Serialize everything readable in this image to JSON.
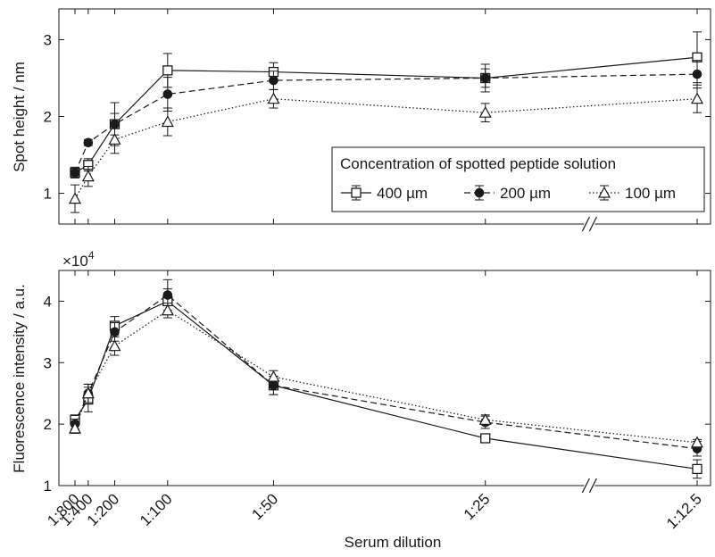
{
  "chart_data": [
    {
      "type": "line",
      "x_categories": [
        "1:800",
        "1:400",
        "1:200",
        "1:100",
        "1:50",
        "1:25",
        "1:12.5"
      ],
      "x_position": [
        0.0,
        0.5,
        1.5,
        3.5,
        7.5,
        15.5,
        23.5
      ],
      "ylabel": "Spot height / nm",
      "xlabel": "",
      "ylim": [
        0.6,
        3.4
      ],
      "yticks": [
        1,
        2,
        3
      ],
      "axis_break": "between 1:25 and 1:12.5",
      "legend": {
        "title": "Concentration of spotted peptide solution",
        "placement": "right"
      },
      "series": [
        {
          "name": "400 µm",
          "marker": "square-open",
          "line": "solid",
          "values": [
            1.27,
            1.37,
            1.9,
            2.6,
            2.58,
            2.5,
            2.77
          ],
          "errors": [
            0.07,
            0.08,
            0.28,
            0.22,
            0.12,
            0.18,
            0.33
          ]
        },
        {
          "name": "200 µm",
          "marker": "circle-filled",
          "line": "dashed",
          "values": [
            1.27,
            1.66,
            1.9,
            2.29,
            2.47,
            2.5,
            2.55
          ],
          "errors": [
            0.04,
            0.04,
            0.14,
            0.22,
            0.12,
            0.12,
            0.18
          ]
        },
        {
          "name": "100 µm",
          "marker": "triangle-open",
          "line": "dotted",
          "values": [
            0.93,
            1.22,
            1.7,
            1.93,
            2.23,
            2.05,
            2.23
          ],
          "errors": [
            0.18,
            0.13,
            0.18,
            0.18,
            0.12,
            0.12,
            0.18
          ]
        }
      ]
    },
    {
      "type": "line",
      "x_categories": [
        "1:800",
        "1:400",
        "1:200",
        "1:100",
        "1:50",
        "1:25",
        "1:12.5"
      ],
      "x_position": [
        0.0,
        0.5,
        1.5,
        3.5,
        7.5,
        15.5,
        23.5
      ],
      "ylabel": "Fluorescence intensity / a.u.",
      "xlabel": "Serum dilution",
      "y_multiplier": "×10^4",
      "ylim": [
        1.0,
        4.5
      ],
      "yticks": [
        1,
        2,
        3,
        4
      ],
      "axis_break": "between 1:25 and 1:12.5",
      "series": [
        {
          "name": "400 µm",
          "marker": "square-open",
          "line": "solid",
          "values": [
            2.07,
            2.4,
            3.6,
            4.0,
            2.63,
            1.77,
            1.27
          ],
          "errors": [
            0.08,
            0.2,
            0.15,
            0.2,
            0.15,
            0.05,
            0.15
          ]
        },
        {
          "name": "200 µm",
          "marker": "circle-filled",
          "line": "dashed",
          "values": [
            2.0,
            2.5,
            3.5,
            4.1,
            2.63,
            2.03,
            1.6
          ],
          "errors": [
            0.08,
            0.15,
            0.15,
            0.25,
            0.15,
            0.1,
            0.12
          ]
        },
        {
          "name": "100 µm",
          "marker": "triangle-open",
          "line": "dotted",
          "values": [
            1.93,
            2.5,
            3.27,
            3.85,
            2.77,
            2.07,
            1.7
          ],
          "errors": [
            0.08,
            0.15,
            0.15,
            0.12,
            0.1,
            0.08,
            0.05
          ]
        }
      ]
    }
  ],
  "panel_top": {
    "ylabel": "Spot height / nm",
    "yticks": [
      "1",
      "2",
      "3"
    ]
  },
  "panel_bottom": {
    "ylabel": "Fluorescence intensity / a.u.",
    "multiplier_base": "×10",
    "multiplier_exp": "4",
    "yticks": [
      "1",
      "2",
      "3",
      "4"
    ],
    "xlabel": "Serum dilution"
  },
  "xticks": [
    "1:800",
    "1:400",
    "1:200",
    "1:100",
    "1:50",
    "1:25",
    "1:12.5"
  ],
  "legend": {
    "title": "Concentration of spotted peptide solution",
    "items": [
      "400 µm",
      "200 µm",
      "100 µm"
    ]
  },
  "colors": {
    "line": "#1a1a1a",
    "background": "#ffffff"
  }
}
